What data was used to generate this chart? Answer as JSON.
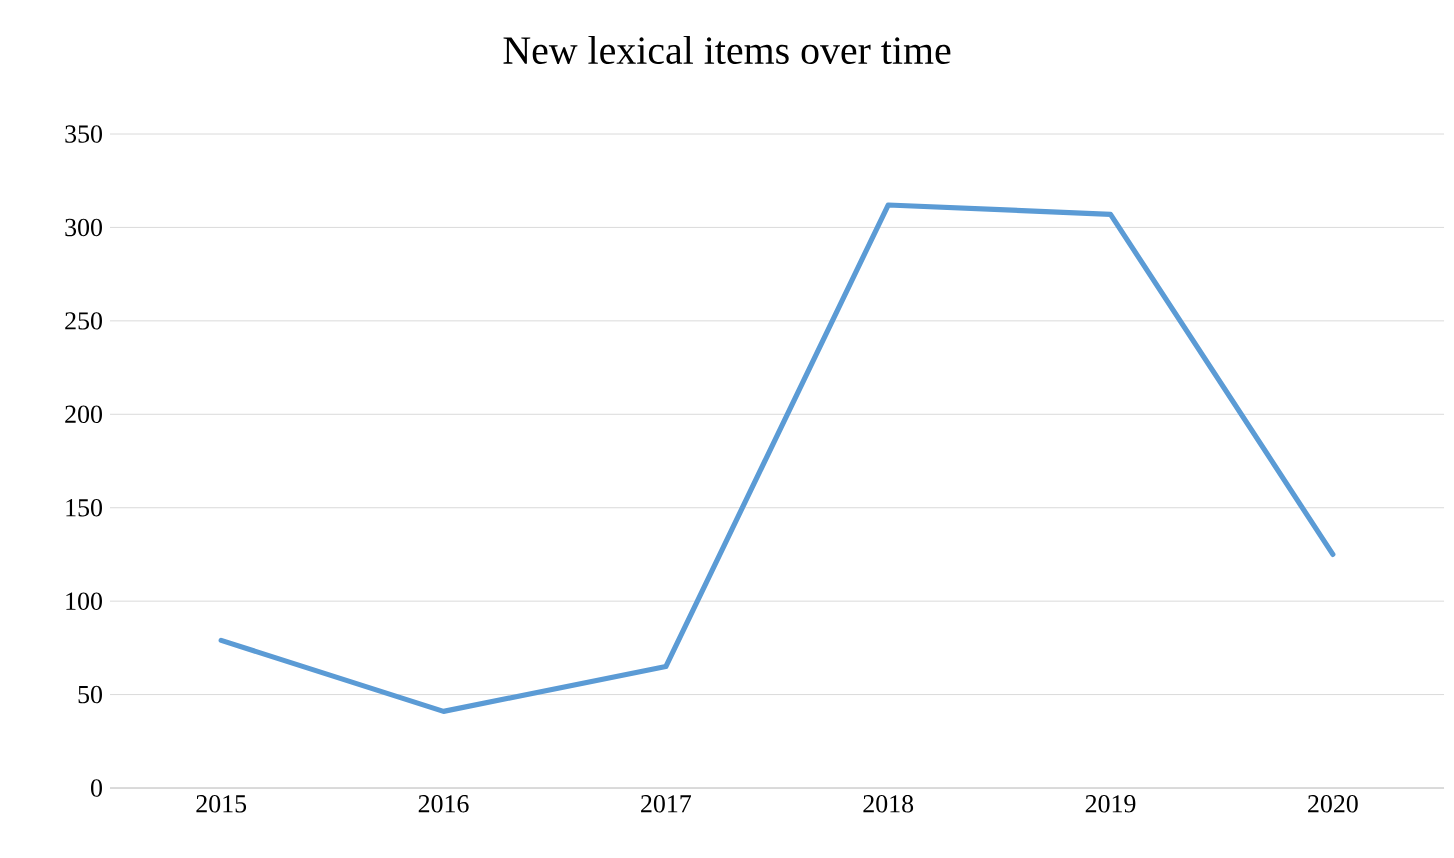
{
  "chart_data": {
    "type": "line",
    "title": "New lexical items over time",
    "categories": [
      "2015",
      "2016",
      "2017",
      "2018",
      "2019",
      "2020"
    ],
    "series": [
      {
        "color": "#5b9bd5",
        "values": [
          79,
          41,
          65,
          312,
          307,
          125
        ]
      }
    ],
    "ylim": [
      0,
      350
    ],
    "yticks": [
      0,
      50,
      100,
      150,
      200,
      250,
      300,
      350
    ],
    "grid": "y",
    "marker": "none",
    "line_style": "solid"
  }
}
